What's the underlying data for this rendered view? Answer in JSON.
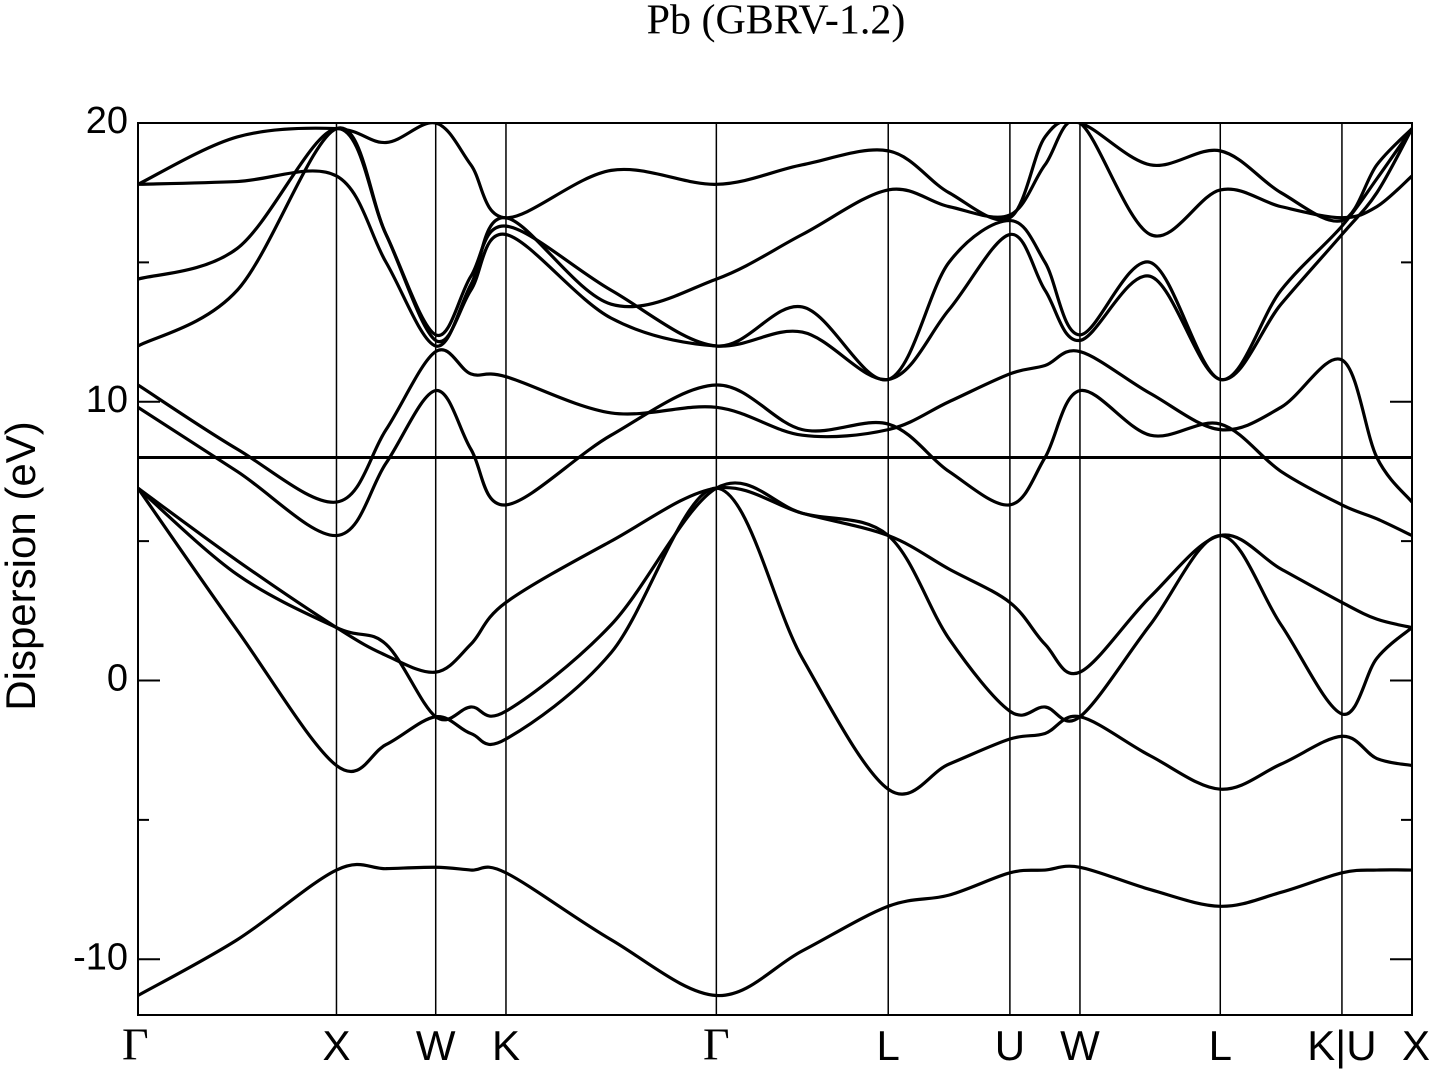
{
  "chart_data": {
    "type": "line",
    "title": "Pb (GBRV-1.2)",
    "y_label": "Dispersion (eV)",
    "color": "#000000",
    "x": [
      0,
      0.5,
      1,
      1.25,
      1.5,
      1.677,
      1.854,
      2.384,
      2.914,
      3.347,
      3.78,
      4.086,
      4.393,
      4.57,
      4.746,
      5.1,
      5.453,
      5.759,
      6.066,
      6.242,
      6.419
    ],
    "xlim": [
      0,
      6.419
    ],
    "xticks": [
      {
        "value": 0,
        "label": "Γ"
      },
      {
        "value": 1,
        "label": "X"
      },
      {
        "value": 1.5,
        "label": "W"
      },
      {
        "value": 1.854,
        "label": "K"
      },
      {
        "value": 2.914,
        "label": "Γ"
      },
      {
        "value": 3.78,
        "label": "L"
      },
      {
        "value": 4.393,
        "label": "U"
      },
      {
        "value": 4.746,
        "label": "W"
      },
      {
        "value": 5.453,
        "label": "L"
      },
      {
        "value": 6.066,
        "label": "K|U"
      },
      {
        "value": 6.419,
        "label": "X"
      }
    ],
    "ylim": [
      -12,
      20
    ],
    "yticks": [
      -10,
      0,
      10,
      20
    ],
    "yminor": [
      -5,
      5,
      15
    ],
    "hline": 8,
    "series": [
      {
        "values": [
          -11.3,
          -9.3,
          -6.8,
          -6.75,
          -6.7,
          -6.8,
          -6.9,
          -9.3,
          -11.3,
          -9.7,
          -8.1,
          -7.7,
          -6.9,
          -6.8,
          -6.7,
          -7.5,
          -8.1,
          -7.6,
          -6.9,
          -6.8,
          -6.8
        ]
      },
      {
        "values": [
          6.9,
          1.8,
          -3.05,
          -2.3,
          -1.3,
          -1.9,
          -2.1,
          1.0,
          6.9,
          0.8,
          -3.9,
          -3.0,
          -2.1,
          -1.9,
          -1.3,
          -2.7,
          -3.9,
          -3.0,
          -2.0,
          -2.8,
          -3.05
        ]
      },
      {
        "values": [
          6.9,
          3.8,
          1.9,
          1.3,
          -1.3,
          -0.95,
          -1.1,
          2.0,
          6.9,
          6.0,
          5.2,
          1.5,
          -1.1,
          -0.95,
          -1.3,
          2.0,
          5.2,
          2.0,
          -1.2,
          0.8,
          1.9
        ]
      },
      {
        "values": [
          6.9,
          4.3,
          1.9,
          0.9,
          0.3,
          1.3,
          2.8,
          5.0,
          6.9,
          6.0,
          5.2,
          4.0,
          2.8,
          1.3,
          0.3,
          3.0,
          5.2,
          4.0,
          2.8,
          2.2,
          1.9
        ]
      },
      {
        "values": [
          9.8,
          7.5,
          5.2,
          7.8,
          10.4,
          8.3,
          6.3,
          8.8,
          10.6,
          9.0,
          9.2,
          7.5,
          6.3,
          8.0,
          10.4,
          8.8,
          9.2,
          7.5,
          6.3,
          5.8,
          5.2
        ]
      },
      {
        "values": [
          10.6,
          8.3,
          6.4,
          9.0,
          11.8,
          11.0,
          10.9,
          9.6,
          9.8,
          8.8,
          9.0,
          10.0,
          11.0,
          11.3,
          11.8,
          10.3,
          9.0,
          9.8,
          11.5,
          8.0,
          6.4
        ]
      },
      {
        "values": [
          12.0,
          14.0,
          19.8,
          16.0,
          12.2,
          14.0,
          16.0,
          13.0,
          12.0,
          12.5,
          10.8,
          13.3,
          16.0,
          14.0,
          12.2,
          14.5,
          10.8,
          13.5,
          16.0,
          17.5,
          19.8
        ]
      },
      {
        "values": [
          14.4,
          15.5,
          19.8,
          16.0,
          12.4,
          14.5,
          16.3,
          14.0,
          12.0,
          13.4,
          10.8,
          15.0,
          16.5,
          15.0,
          12.4,
          15.0,
          10.8,
          14.0,
          16.3,
          18.0,
          19.8
        ]
      },
      {
        "values": [
          17.8,
          17.9,
          18.1,
          15.0,
          12.0,
          14.2,
          16.6,
          13.5,
          14.4,
          16.0,
          17.6,
          17.0,
          16.7,
          18.5,
          20,
          16.0,
          17.6,
          17.0,
          16.6,
          17.0,
          18.1
        ]
      },
      {
        "values": [
          17.8,
          19.5,
          19.8,
          19.3,
          20,
          18.5,
          16.6,
          18.3,
          17.8,
          18.5,
          19.0,
          17.5,
          16.6,
          19.5,
          20,
          18.5,
          19.0,
          17.5,
          16.5,
          18.5,
          19.8
        ]
      }
    ]
  }
}
